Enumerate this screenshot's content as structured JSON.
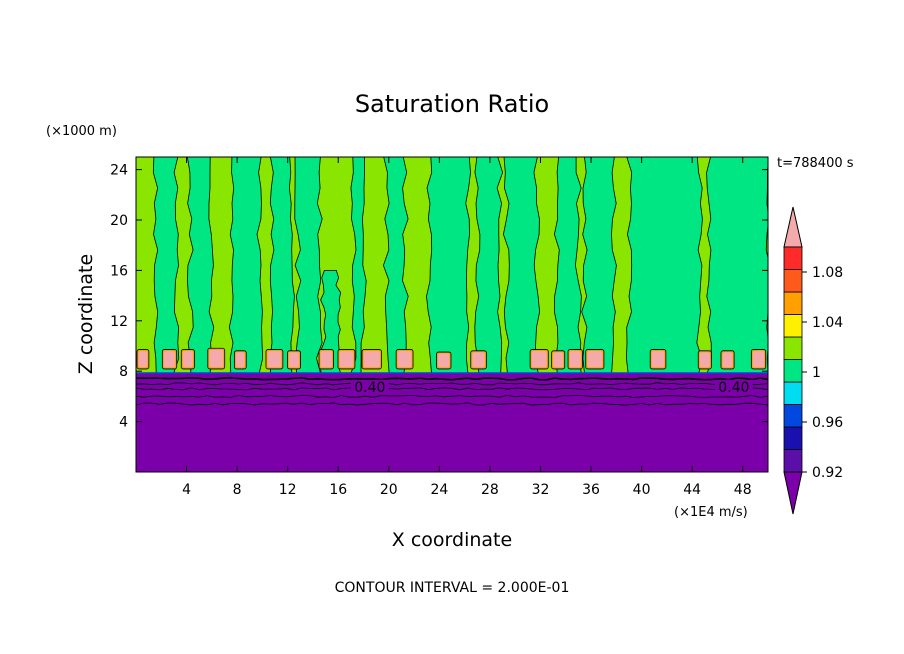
{
  "chart_data": {
    "type": "filled-contour",
    "title": "Saturation Ratio",
    "xlabel": "X coordinate",
    "ylabel": "Z coordinate",
    "x_unit": "(×1E4 m/s)",
    "y_unit": "(×1000 m)",
    "time_label": "t=788400 s",
    "footer": "CONTOUR INTERVAL = 2.000E-01",
    "xlim": [
      0,
      50
    ],
    "ylim": [
      0,
      25
    ],
    "x_ticks": [
      4,
      8,
      12,
      16,
      20,
      24,
      28,
      32,
      36,
      40,
      44,
      48
    ],
    "y_ticks": [
      4,
      8,
      12,
      16,
      20,
      24
    ],
    "contour_labels": [
      {
        "text": "0.40",
        "x": 18.5,
        "y": 6.6
      },
      {
        "text": "0.40",
        "x": 47.3,
        "y": 6.6
      }
    ],
    "colorbar": {
      "levels": [
        0.92,
        0.94,
        0.96,
        0.98,
        1.0,
        1.02,
        1.04,
        1.06,
        1.08,
        1.1
      ],
      "tick_labels": [
        "0.92",
        "0.96",
        "1",
        "1.04",
        "1.08"
      ],
      "colors": [
        "#5a0fa8",
        "#1a10b0",
        "#0048e0",
        "#00dcf0",
        "#00e682",
        "#8ae600",
        "#fff000",
        "#ffa000",
        "#ff5a1e",
        "#ff2a2a"
      ],
      "under_color": "#7b00aa",
      "over_color": "#f4aaaa"
    },
    "field": {
      "upper_background_color": "#8ae600",
      "lower_region_color": "#7b00aa",
      "transition_height": 7.8,
      "cloud_layer_base": 8.3,
      "cloud_layer_top": 9.7,
      "cloud_cell_color": "#f4aaaa",
      "columns": [
        {
          "x0": 1.5,
          "x1": 3.2,
          "top": 25
        },
        {
          "x0": 4.3,
          "x1": 6.0,
          "top": 25
        },
        {
          "x0": 7.5,
          "x1": 9.8,
          "top": 25
        },
        {
          "x0": 10.7,
          "x1": 12.3,
          "top": 25
        },
        {
          "x0": 12.8,
          "x1": 14.5,
          "top": 25
        },
        {
          "x0": 14.8,
          "x1": 16.0,
          "top": 16
        },
        {
          "x0": 17.2,
          "x1": 18.0,
          "top": 25
        },
        {
          "x0": 19.8,
          "x1": 21.3,
          "top": 25
        },
        {
          "x0": 23.2,
          "x1": 26.3,
          "top": 25
        },
        {
          "x0": 27.0,
          "x1": 28.8,
          "top": 25
        },
        {
          "x0": 29.3,
          "x1": 31.7,
          "top": 25
        },
        {
          "x0": 33.3,
          "x1": 35.0,
          "top": 25
        },
        {
          "x0": 35.5,
          "x1": 37.8,
          "top": 25
        },
        {
          "x0": 39.0,
          "x1": 44.6,
          "top": 25
        },
        {
          "x0": 45.3,
          "x1": 50.0,
          "top": 25
        }
      ],
      "cloud_cells": [
        {
          "x0": 0.2,
          "x1": 0.9,
          "top": 9.6
        },
        {
          "x0": 2.2,
          "x1": 3.1,
          "top": 9.6
        },
        {
          "x0": 3.7,
          "x1": 4.5,
          "top": 9.6
        },
        {
          "x0": 5.8,
          "x1": 6.9,
          "top": 9.7
        },
        {
          "x0": 7.9,
          "x1": 8.6,
          "top": 9.5
        },
        {
          "x0": 10.4,
          "x1": 11.5,
          "top": 9.6
        },
        {
          "x0": 12.1,
          "x1": 12.9,
          "top": 9.5
        },
        {
          "x0": 14.6,
          "x1": 15.5,
          "top": 9.6
        },
        {
          "x0": 16.1,
          "x1": 17.2,
          "top": 9.6
        },
        {
          "x0": 18.0,
          "x1": 19.3,
          "top": 9.6
        },
        {
          "x0": 20.7,
          "x1": 21.8,
          "top": 9.6
        },
        {
          "x0": 23.9,
          "x1": 24.8,
          "top": 9.4
        },
        {
          "x0": 26.6,
          "x1": 27.6,
          "top": 9.5
        },
        {
          "x0": 31.3,
          "x1": 32.5,
          "top": 9.6
        },
        {
          "x0": 33.0,
          "x1": 33.8,
          "top": 9.5
        },
        {
          "x0": 34.3,
          "x1": 35.2,
          "top": 9.6
        },
        {
          "x0": 35.7,
          "x1": 36.9,
          "top": 9.6
        },
        {
          "x0": 40.8,
          "x1": 41.8,
          "top": 9.6
        },
        {
          "x0": 44.6,
          "x1": 45.4,
          "top": 9.5
        },
        {
          "x0": 46.4,
          "x1": 47.2,
          "top": 9.5
        },
        {
          "x0": 48.8,
          "x1": 49.7,
          "top": 9.6
        }
      ],
      "black_contour_heights": [
        7.4,
        7.0,
        6.6,
        6.0,
        5.4
      ]
    }
  }
}
